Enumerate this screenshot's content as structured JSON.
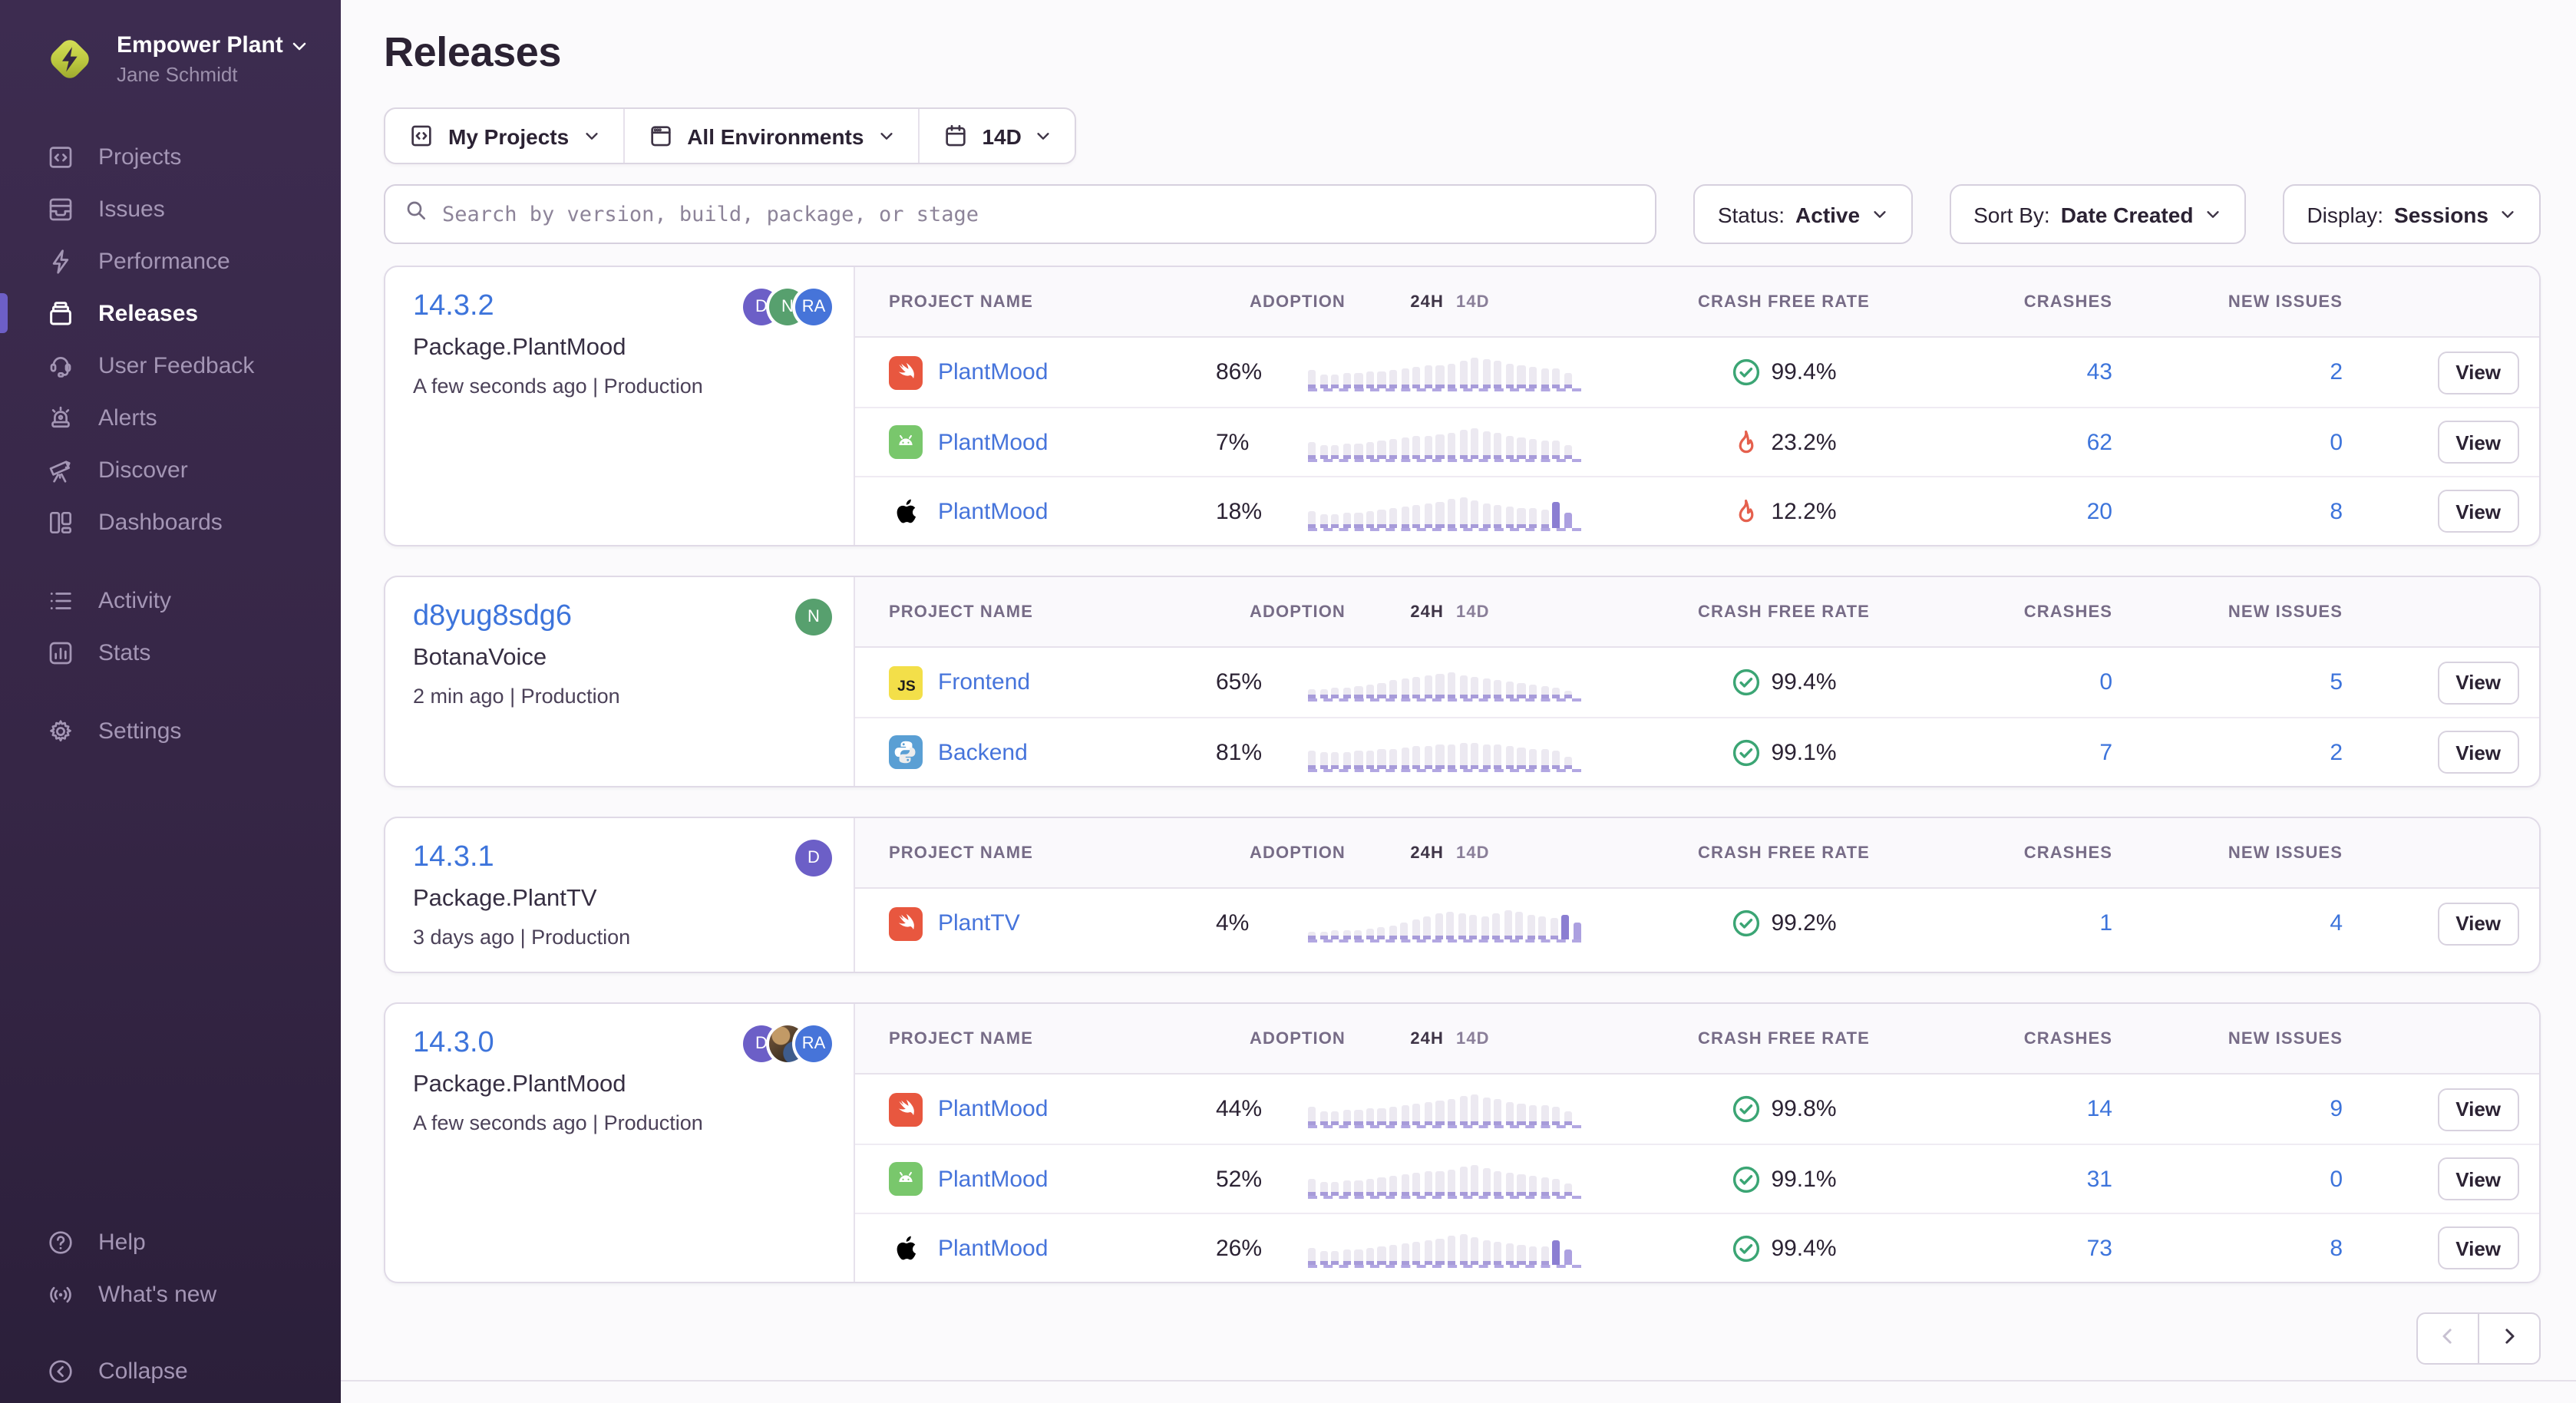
{
  "sidebar": {
    "org_name": "Empower Plant",
    "user_name": "Jane Schmidt",
    "groups": [
      {
        "items": [
          {
            "label": "Projects",
            "icon": "projects-icon",
            "active": false
          },
          {
            "label": "Issues",
            "icon": "issues-icon",
            "active": false
          },
          {
            "label": "Performance",
            "icon": "performance-icon",
            "active": false
          },
          {
            "label": "Releases",
            "icon": "releases-icon",
            "active": true
          },
          {
            "label": "User Feedback",
            "icon": "user-feedback-icon",
            "active": false
          },
          {
            "label": "Alerts",
            "icon": "alerts-icon",
            "active": false
          },
          {
            "label": "Discover",
            "icon": "discover-icon",
            "active": false
          },
          {
            "label": "Dashboards",
            "icon": "dashboards-icon",
            "active": false
          }
        ]
      },
      {
        "items": [
          {
            "label": "Activity",
            "icon": "activity-icon",
            "active": false
          },
          {
            "label": "Stats",
            "icon": "stats-icon",
            "active": false
          }
        ]
      },
      {
        "items": [
          {
            "label": "Settings",
            "icon": "settings-icon",
            "active": false
          }
        ]
      }
    ],
    "footer_items": [
      {
        "label": "Help",
        "icon": "help-icon"
      },
      {
        "label": "What's new",
        "icon": "whats-new-icon"
      }
    ],
    "collapse": {
      "label": "Collapse",
      "icon": "collapse-icon"
    }
  },
  "header": {
    "title": "Releases",
    "filters": {
      "projects": "My Projects",
      "environments": "All Environments",
      "date_range": "14D"
    },
    "search_placeholder": "Search by version, build, package, or stage",
    "status": {
      "label": "Status:",
      "value": "Active"
    },
    "sort": {
      "label": "Sort By:",
      "value": "Date Created"
    },
    "display": {
      "label": "Display:",
      "value": "Sessions"
    }
  },
  "table": {
    "col_project": "PROJECT NAME",
    "col_adoption": "ADOPTION",
    "col_24h": "24H",
    "col_14d": "14D",
    "col_crash_free": "CRASH FREE RATE",
    "col_crashes": "CRASHES",
    "col_new_issues": "NEW ISSUES",
    "view_label": "View"
  },
  "releases": [
    {
      "version": "14.3.2",
      "package": "Package.PlantMood",
      "meta": "A few seconds ago | Production",
      "avatars": [
        {
          "type": "initials",
          "initials": "D",
          "color": "#6C5FC7"
        },
        {
          "type": "initials",
          "initials": "N",
          "color": "#57A06E"
        },
        {
          "type": "initials",
          "initials": "RA",
          "color": "#4674D9"
        }
      ],
      "rows": [
        {
          "platform_icon": "swift-icon",
          "project": "PlantMood",
          "adoption": "86%",
          "crash_free": "99.4%",
          "crash_status": "good",
          "crashes": "43",
          "new_issues": "2",
          "sparkline": [
            9,
            6,
            6,
            7,
            7,
            8,
            8,
            9,
            10,
            11,
            12,
            12,
            13,
            15,
            17,
            16,
            15,
            13,
            12,
            11,
            10,
            10,
            7
          ],
          "purple_tail": 0
        },
        {
          "platform_icon": "android-icon",
          "project": "PlantMood",
          "adoption": "7%",
          "crash_free": "23.2%",
          "crash_status": "bad",
          "crashes": "62",
          "new_issues": "0",
          "sparkline": [
            8,
            6,
            6,
            7,
            7,
            8,
            9,
            10,
            11,
            12,
            12,
            13,
            14,
            16,
            17,
            15,
            14,
            12,
            11,
            10,
            9,
            9,
            6
          ],
          "purple_tail": 0
        },
        {
          "platform_icon": "apple-icon",
          "project": "PlantMood",
          "adoption": "18%",
          "crash_free": "12.2%",
          "crash_status": "bad",
          "crashes": "20",
          "new_issues": "8",
          "sparkline": [
            8,
            6,
            6,
            7,
            7,
            8,
            9,
            10,
            11,
            12,
            13,
            14,
            16,
            17,
            15,
            13,
            12,
            11,
            10,
            10,
            9,
            14,
            7
          ],
          "purple_tail": 2
        }
      ]
    },
    {
      "version": "d8yug8sdg6",
      "package": "BotanaVoice",
      "meta": "2 min ago | Production",
      "avatars": [
        {
          "type": "initials",
          "initials": "N",
          "color": "#57A06E"
        }
      ],
      "rows": [
        {
          "platform_icon": "js-icon",
          "project": "Frontend",
          "adoption": "65%",
          "crash_free": "99.4%",
          "crash_status": "good",
          "crashes": "0",
          "new_issues": "5",
          "sparkline": [
            3,
            3,
            4,
            4,
            5,
            6,
            7,
            9,
            10,
            11,
            12,
            13,
            14,
            12,
            11,
            10,
            9,
            8,
            7,
            6,
            5,
            4,
            2
          ],
          "purple_tail": 0
        },
        {
          "platform_icon": "python-icon",
          "project": "Backend",
          "adoption": "81%",
          "crash_free": "99.1%",
          "crash_status": "good",
          "crashes": "7",
          "new_issues": "2",
          "sparkline": [
            9,
            8,
            8,
            8,
            9,
            9,
            10,
            10,
            11,
            12,
            12,
            13,
            13,
            14,
            14,
            13,
            13,
            12,
            11,
            10,
            10,
            9,
            5
          ],
          "purple_tail": 0
        }
      ]
    },
    {
      "version": "14.3.1",
      "package": "Package.PlantTV",
      "meta": "3 days ago | Production",
      "avatars": [
        {
          "type": "initials",
          "initials": "D",
          "color": "#6C5FC7"
        }
      ],
      "rows": [
        {
          "platform_icon": "swift-icon",
          "project": "PlantTV",
          "adoption": "4%",
          "crash_free": "99.2%",
          "crash_status": "good",
          "crashes": "1",
          "new_issues": "4",
          "sparkline": [
            2,
            2,
            3,
            3,
            3,
            4,
            5,
            6,
            8,
            10,
            12,
            14,
            15,
            14,
            13,
            12,
            14,
            16,
            15,
            13,
            12,
            11,
            13,
            8
          ],
          "purple_tail": 2
        }
      ]
    },
    {
      "version": "14.3.0",
      "package": "Package.PlantMood",
      "meta": "A few seconds ago | Production",
      "avatars": [
        {
          "type": "initials",
          "initials": "D",
          "color": "#6C5FC7"
        },
        {
          "type": "photo",
          "initials": "",
          "color": ""
        },
        {
          "type": "initials",
          "initials": "RA",
          "color": "#4674D9"
        }
      ],
      "rows": [
        {
          "platform_icon": "swift-icon",
          "project": "PlantMood",
          "adoption": "44%",
          "crash_free": "99.8%",
          "crash_status": "good",
          "crashes": "14",
          "new_issues": "9",
          "sparkline": [
            9,
            6,
            6,
            7,
            7,
            8,
            8,
            9,
            10,
            11,
            12,
            13,
            14,
            16,
            17,
            15,
            14,
            12,
            11,
            10,
            10,
            9,
            6
          ],
          "purple_tail": 0
        },
        {
          "platform_icon": "android-icon",
          "project": "PlantMood",
          "adoption": "52%",
          "crash_free": "99.1%",
          "crash_status": "good",
          "crashes": "31",
          "new_issues": "0",
          "sparkline": [
            8,
            6,
            6,
            7,
            7,
            8,
            9,
            10,
            11,
            12,
            13,
            13,
            14,
            16,
            17,
            15,
            13,
            12,
            11,
            10,
            9,
            8,
            5
          ],
          "purple_tail": 0
        },
        {
          "platform_icon": "apple-icon",
          "project": "PlantMood",
          "adoption": "26%",
          "crash_free": "99.4%",
          "crash_status": "good",
          "crashes": "73",
          "new_issues": "8",
          "sparkline": [
            8,
            6,
            6,
            7,
            7,
            8,
            9,
            10,
            11,
            12,
            13,
            14,
            16,
            17,
            15,
            13,
            12,
            11,
            10,
            9,
            9,
            13,
            7
          ],
          "purple_tail": 2
        }
      ]
    }
  ],
  "pagination": {
    "prev_enabled": false,
    "next_enabled": true
  },
  "colors": {
    "accent_purple": "#6C5FC7",
    "link_blue": "#3D74DB",
    "good_green": "#3BA574",
    "bad_red": "#E5604D",
    "sidebar_bg": "#362646",
    "chart_purple": "#8B7ED2"
  }
}
